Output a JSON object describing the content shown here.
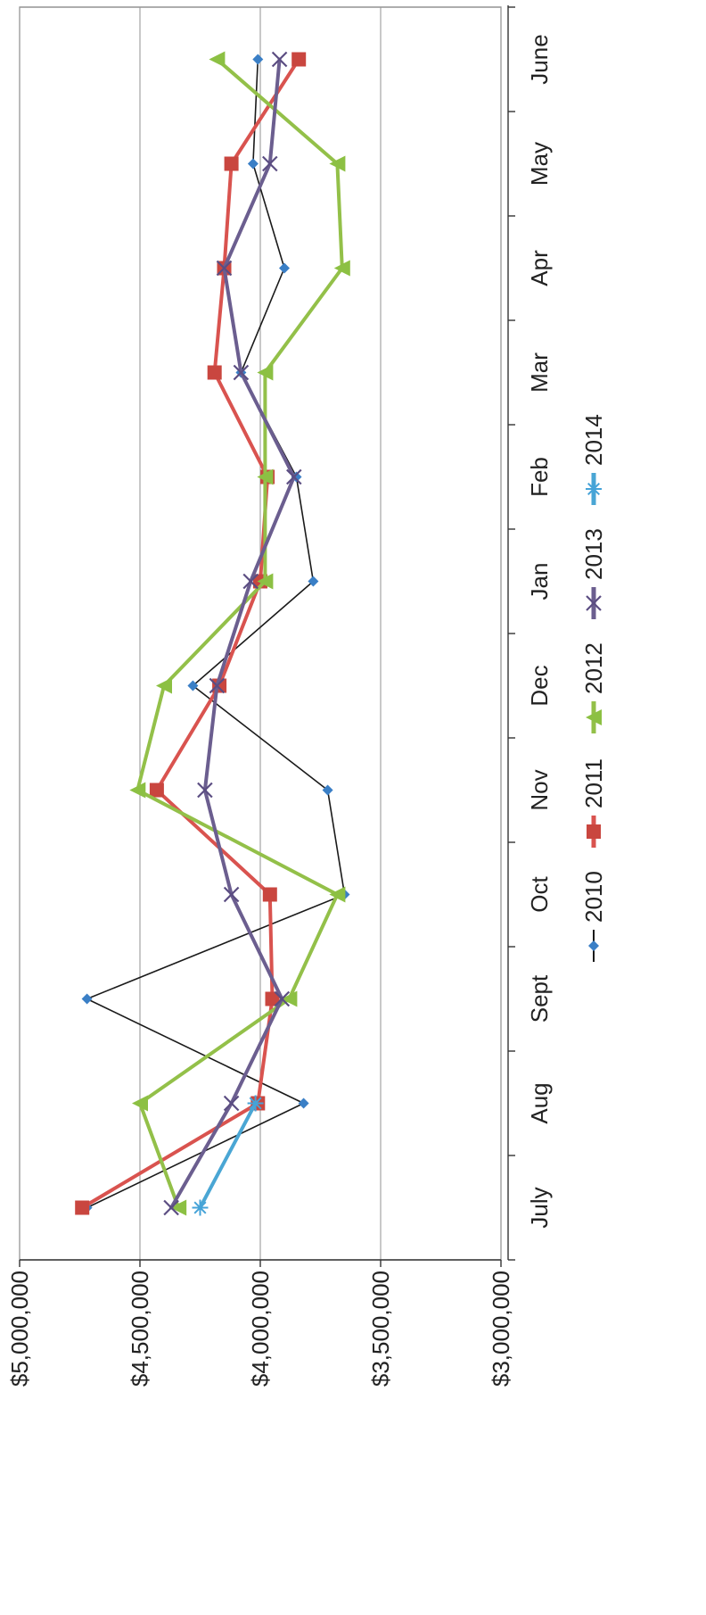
{
  "chart_data": {
    "type": "line",
    "orientation": "rotated-90",
    "title": "",
    "xlabel": "",
    "ylabel": "",
    "categories": [
      "July",
      "Aug",
      "Sept",
      "Oct",
      "Nov",
      "Dec",
      "Jan",
      "Feb",
      "Mar",
      "Apr",
      "May",
      "June"
    ],
    "ylim": [
      3000000,
      5000000
    ],
    "yticks": [
      3000000,
      3500000,
      4000000,
      4500000,
      5000000
    ],
    "ytick_labels": [
      "$3,000,000",
      "$3,500,000",
      "$4,000,000",
      "$4,500,000",
      "$5,000,000"
    ],
    "grid": true,
    "legend_position": "bottom",
    "series": [
      {
        "name": "2010",
        "color": "#1a1a1a",
        "marker_color": "#3a7fc6",
        "marker": "diamond",
        "values": [
          4720000,
          3820000,
          4720000,
          3650000,
          3720000,
          4280000,
          3780000,
          3850000,
          4080000,
          3900000,
          4030000,
          4010000
        ]
      },
      {
        "name": "2011",
        "color": "#d9534f",
        "marker_color": "#c9463f",
        "marker": "square",
        "values": [
          4740000,
          4010000,
          3950000,
          3960000,
          4430000,
          4170000,
          4000000,
          3970000,
          4190000,
          4150000,
          4120000,
          3840000
        ]
      },
      {
        "name": "2012",
        "color": "#93c049",
        "marker_color": "#8cc043",
        "marker": "triangle",
        "values": [
          4340000,
          4500000,
          3880000,
          3680000,
          4510000,
          4400000,
          3980000,
          3980000,
          3980000,
          3660000,
          3680000,
          4180000
        ]
      },
      {
        "name": "2013",
        "color": "#6b5e8f",
        "marker_color": "#5b4d82",
        "marker": "x",
        "values": [
          4370000,
          4120000,
          3910000,
          4120000,
          4230000,
          4180000,
          4040000,
          3860000,
          4080000,
          4150000,
          3960000,
          3920000
        ]
      },
      {
        "name": "2014",
        "color": "#4aa6d4",
        "marker_color": "#45a3d8",
        "marker": "star",
        "values": [
          4250000,
          4020000,
          null,
          null,
          null,
          null,
          null,
          null,
          null,
          null,
          null,
          null
        ]
      }
    ]
  }
}
